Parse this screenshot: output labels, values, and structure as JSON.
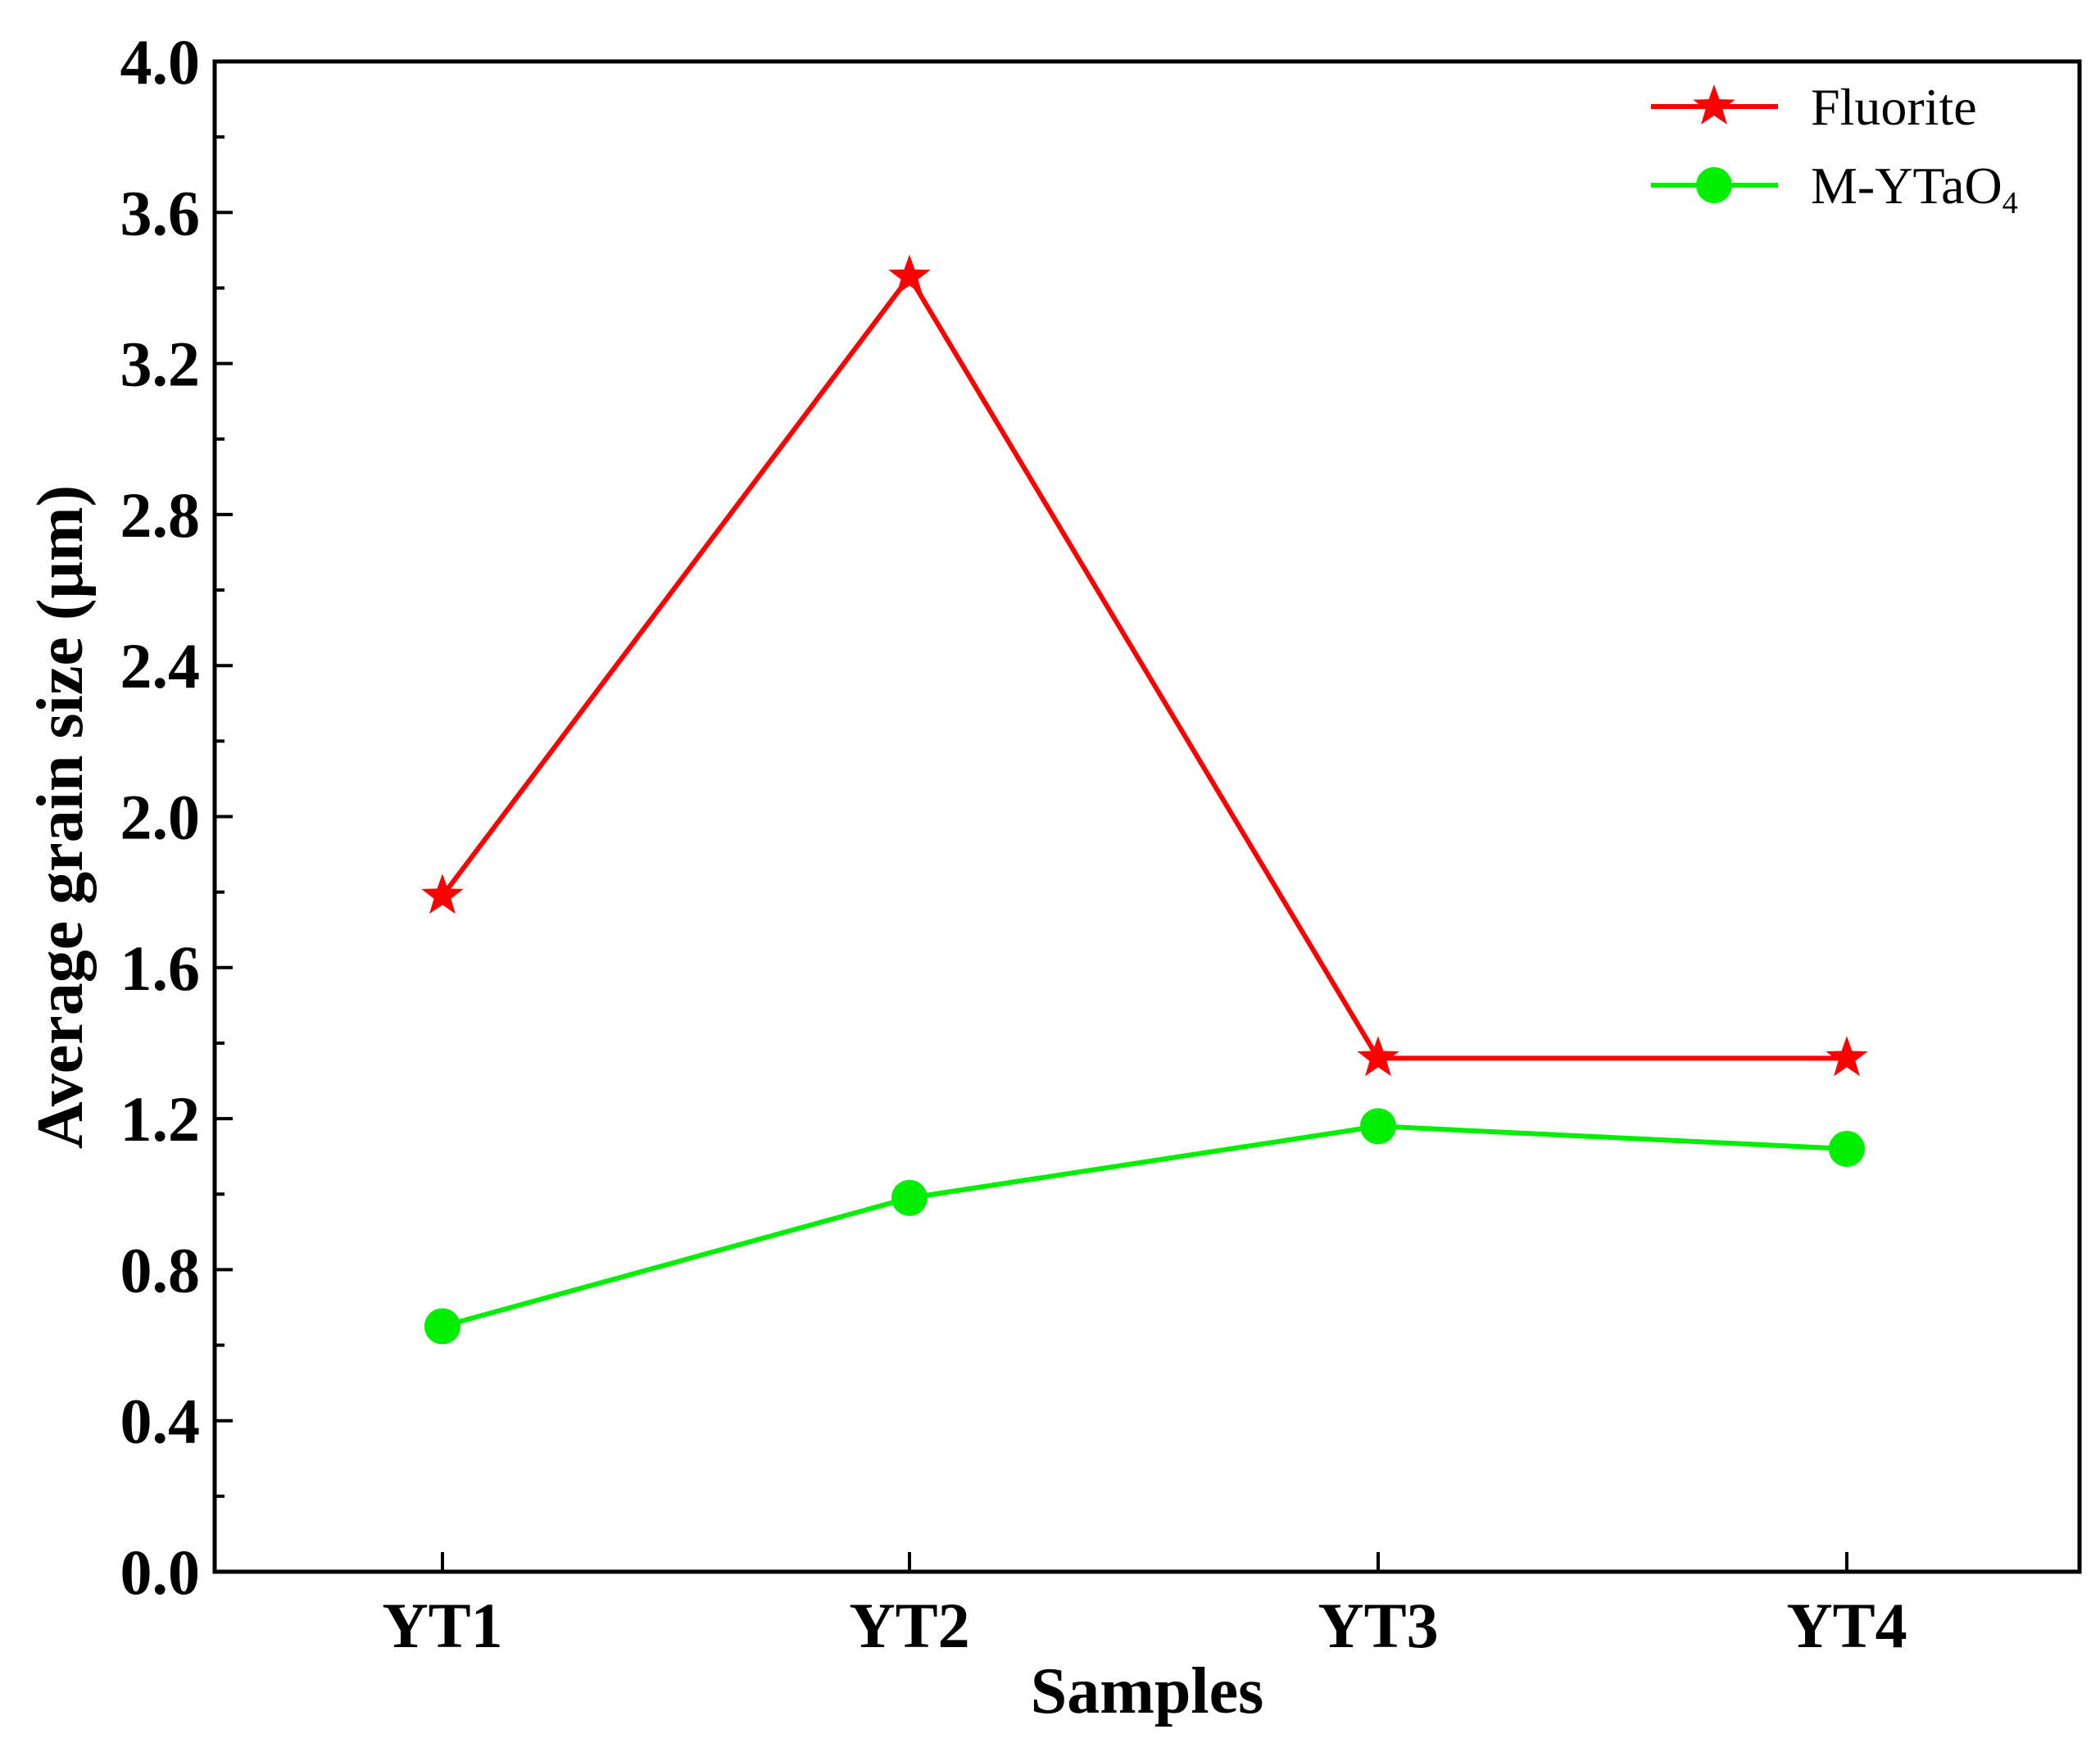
{
  "chart_data": {
    "type": "line",
    "title": "",
    "xlabel": "Samples",
    "ylabel": "Average grain size (μm)",
    "categories": [
      "YT1",
      "YT2",
      "YT3",
      "YT4"
    ],
    "ylim": [
      0.0,
      4.0
    ],
    "yticks": [
      "0.0",
      "0.4",
      "0.8",
      "1.2",
      "1.6",
      "2.0",
      "2.4",
      "2.8",
      "3.2",
      "3.6",
      "4.0"
    ],
    "grid": false,
    "legend_position": "top-right",
    "series": [
      {
        "name": "Fluorite",
        "color": "#ff0000",
        "marker": "star",
        "values": [
          1.79,
          3.43,
          1.36,
          1.36
        ]
      },
      {
        "name": "M-YTaO",
        "name_subscript": "4",
        "color": "#00ee00",
        "marker": "circle",
        "values": [
          0.65,
          0.99,
          1.18,
          1.12
        ]
      }
    ]
  }
}
